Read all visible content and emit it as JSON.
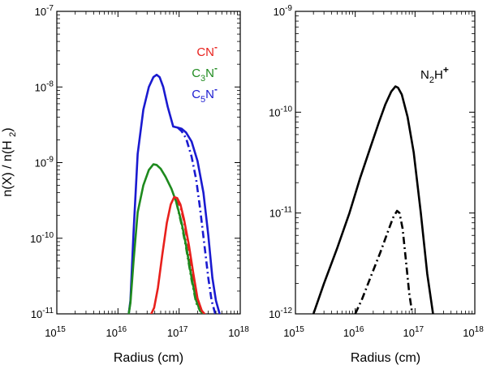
{
  "chart_data": [
    {
      "id": "left",
      "type": "line",
      "title": "",
      "xlabel": "Radius (cm)",
      "ylabel": "n(X) / n(H2)",
      "xscale": "log",
      "yscale": "log",
      "xlim": [
        1000000000000000.0,
        1e+18
      ],
      "ylim": [
        1e-11,
        1e-07
      ],
      "xticks": [
        {
          "base": "10",
          "exp": "15"
        },
        {
          "base": "10",
          "exp": "16"
        },
        {
          "base": "10",
          "exp": "17"
        },
        {
          "base": "10",
          "exp": "18"
        }
      ],
      "yticks": [
        {
          "base": "10",
          "exp": "-11"
        },
        {
          "base": "10",
          "exp": "-10"
        },
        {
          "base": "10",
          "exp": "-9"
        },
        {
          "base": "10",
          "exp": "-8"
        },
        {
          "base": "10",
          "exp": "-7"
        }
      ],
      "legend": [
        {
          "main": "CN",
          "sub": "",
          "main2": "",
          "sup": "-",
          "color": "#e8201c"
        },
        {
          "main": "C",
          "sub": "3",
          "main2": "N",
          "sup": "-",
          "color": "#1e8a1e"
        },
        {
          "main": "C",
          "sub": "5",
          "main2": "N",
          "sup": "-",
          "color": "#1a1ad0"
        }
      ],
      "series": [
        {
          "name": "C5N- (solid)",
          "color": "#1a1ad0",
          "style": "solid",
          "x": [
            1.5e+16,
            1.6e+16,
            1.8e+16,
            2.1e+16,
            2.6e+16,
            3.2e+16,
            3.8e+16,
            4.3e+16,
            4.8e+16,
            5.5e+16,
            6.5e+16,
            8e+16,
            9.5e+16,
            1.1e+17,
            1.3e+17,
            1.6e+17,
            2e+17,
            2.5e+17,
            3e+17,
            3.5e+17,
            4e+17,
            4.6e+17
          ],
          "y": [
            1e-11,
            1.5e-11,
            1.2e-10,
            1.3e-09,
            5e-09,
            1e-08,
            1.35e-08,
            1.45e-08,
            1.35e-08,
            1e-08,
            5.5e-09,
            3e-09,
            2.9e-09,
            2.8e-09,
            2.5e-09,
            1.9e-09,
            1.05e-09,
            4e-10,
            1.1e-10,
            3e-11,
            1.5e-11,
            1e-11
          ]
        },
        {
          "name": "C5N- (dash-dot)",
          "color": "#1a1ad0",
          "style": "dashdot",
          "x": [
            9.5e+16,
            1.1e+17,
            1.3e+17,
            1.6e+17,
            1.9e+17,
            2.2e+17,
            2.6e+17,
            3e+17,
            3.4e+17,
            3.9e+17
          ],
          "y": [
            2.9e-09,
            2.6e-09,
            2.1e-09,
            1.2e-09,
            6e-10,
            2.5e-10,
            8e-11,
            3e-11,
            1.5e-11,
            1e-11
          ]
        },
        {
          "name": "C3N- (solid)",
          "color": "#1e8a1e",
          "style": "solid",
          "x": [
            1.5e+16,
            1.6e+16,
            1.8e+16,
            2.1e+16,
            2.6e+16,
            3.2e+16,
            3.8e+16,
            4.3e+16,
            5e+16,
            6e+16,
            7.5e+16,
            9e+16,
            1.1e+17,
            1.3e+17,
            1.6e+17,
            1.9e+17,
            2.2e+17,
            2.5e+17
          ],
          "y": [
            1e-11,
            1.4e-11,
            5e-11,
            2.2e-10,
            5e-10,
            8e-10,
            9.5e-10,
            9.3e-10,
            8.3e-10,
            6.5e-10,
            4.5e-10,
            3e-10,
            1.6e-10,
            8e-11,
            3e-11,
            1.5e-11,
            1.1e-11,
            1e-11
          ]
        },
        {
          "name": "C3N- (dash-dot)",
          "color": "#1e8a1e",
          "style": "dashdot",
          "x": [
            9e+16,
            1.1e+17,
            1.3e+17,
            1.6e+17,
            1.9e+17,
            2.2e+17,
            2.5e+17
          ],
          "y": [
            3e-10,
            1.5e-10,
            7.5e-11,
            2.8e-11,
            1.4e-11,
            1.1e-11,
            1e-11
          ]
        },
        {
          "name": "CN- (solid)",
          "color": "#e8201c",
          "style": "solid",
          "x": [
            3.5e+16,
            3.9e+16,
            4.5e+16,
            5.3e+16,
            6.3e+16,
            7.3e+16,
            8.3e+16,
            9.3e+16,
            1.05e+17,
            1.2e+17,
            1.45e+17,
            1.7e+17,
            2e+17,
            2.35e+17,
            2.6e+17
          ],
          "y": [
            1e-11,
            1.2e-11,
            2.2e-11,
            6e-11,
            1.6e-10,
            2.8e-10,
            3.5e-10,
            3.4e-10,
            2.8e-10,
            1.8e-10,
            8e-11,
            3.5e-11,
            1.6e-11,
            1.1e-11,
            1e-11
          ]
        },
        {
          "name": "CN- (dash-dot)",
          "color": "#e8201c",
          "style": "dashdot",
          "x": [
            9e+16,
            1.05e+17,
            1.2e+17,
            1.45e+17,
            1.7e+17,
            2e+17,
            2.3e+17,
            2.6e+17
          ],
          "y": [
            3.3e-10,
            2.6e-10,
            1.7e-10,
            7e-11,
            3e-11,
            1.5e-11,
            1.1e-11,
            1e-11
          ]
        }
      ]
    },
    {
      "id": "right",
      "type": "line",
      "title": "",
      "xlabel": "Radius (cm)",
      "ylabel": "",
      "xscale": "log",
      "yscale": "log",
      "xlim": [
        1000000000000000.0,
        1e+18
      ],
      "ylim": [
        1e-12,
        1e-09
      ],
      "xticks": [
        {
          "base": "10",
          "exp": "15"
        },
        {
          "base": "10",
          "exp": "16"
        },
        {
          "base": "10",
          "exp": "17"
        },
        {
          "base": "10",
          "exp": "18"
        }
      ],
      "yticks": [
        {
          "base": "10",
          "exp": "-12"
        },
        {
          "base": "10",
          "exp": "-11"
        },
        {
          "base": "10",
          "exp": "-10"
        },
        {
          "base": "10",
          "exp": "-9"
        }
      ],
      "legend": [
        {
          "main": "N",
          "sub": "2",
          "main2": "H",
          "sup": "+",
          "color": "#000000"
        }
      ],
      "series": [
        {
          "name": "N2H+ (solid)",
          "color": "#000000",
          "style": "solid",
          "x": [
            2000000000000000.0,
            3000000000000000.0,
            5000000000000000.0,
            8000000000000000.0,
            1.2e+16,
            1.8e+16,
            2.5e+16,
            3.2e+16,
            4e+16,
            4.7e+16,
            5.2e+16,
            6e+16,
            7.5e+16,
            9.5e+16,
            1.25e+17,
            1.6e+17,
            2e+17
          ],
          "y": [
            1e-12,
            2e-12,
            4.5e-12,
            1e-11,
            2.2e-11,
            4.5e-11,
            8e-11,
            1.2e-10,
            1.6e-10,
            1.8e-10,
            1.75e-10,
            1.5e-10,
            9e-11,
            4e-11,
            1e-11,
            2.5e-12,
            1e-12
          ]
        },
        {
          "name": "N2H+ (dash-dot)",
          "color": "#000000",
          "style": "dashdot",
          "x": [
            1e+16,
            1.3e+16,
            1.8e+16,
            2.6e+16,
            3.5e+16,
            4.3e+16,
            5e+16,
            5.5e+16,
            6.2e+16,
            7e+16,
            8e+16,
            9e+16
          ],
          "y": [
            1e-12,
            1.4e-12,
            2.3e-12,
            4e-12,
            6.5e-12,
            9e-12,
            1.05e-11,
            1e-11,
            7e-12,
            3.5e-12,
            1.6e-12,
            1e-12
          ]
        }
      ]
    }
  ]
}
